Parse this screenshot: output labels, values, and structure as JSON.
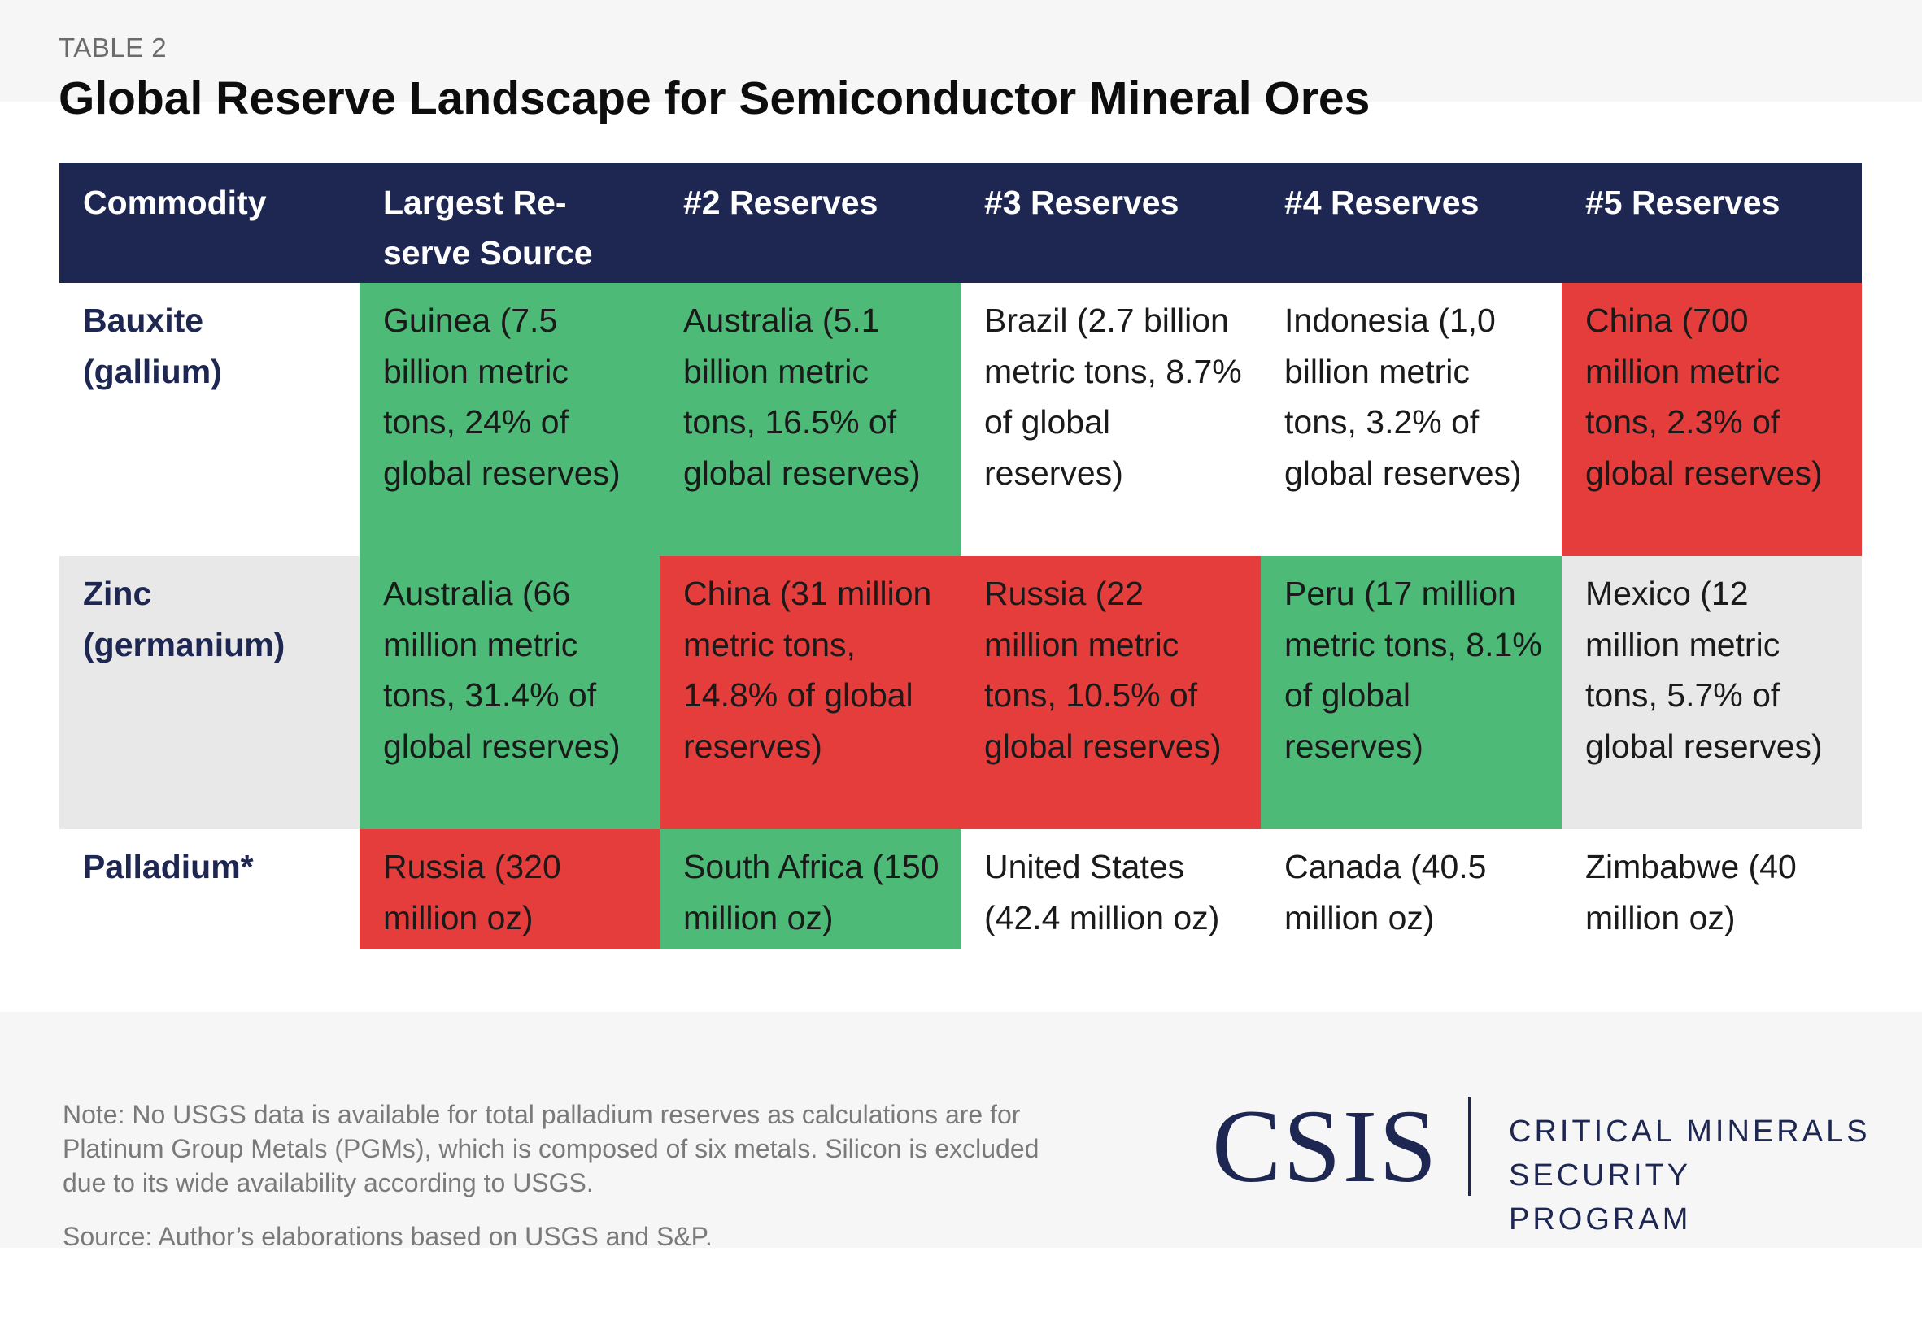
{
  "header": {
    "kicker": "TABLE 2",
    "title": "Global Reserve Landscape for Semiconductor Mineral Ores"
  },
  "table": {
    "columns": [
      "Commodity",
      "Largest Re-serve Source",
      "#2 Reserves",
      "#3 Reserves",
      "#4 Reserves",
      "#5 Reserves"
    ],
    "rows": [
      {
        "commodity": "Bauxite (gallium)",
        "cells": [
          "Guinea (7.5 billion metric tons, 24% of global reserves)",
          "Australia (5.1 billion metric tons, 16.5% of global reserves)",
          "Brazil (2.7 billion metric tons, 8.7% of global reserves)",
          "Indonesia (1,0 billion metric tons, 3.2% of global reserves)",
          "China (700 million metric tons, 2.3% of global reserves)"
        ]
      },
      {
        "commodity": "Zinc (germanium)",
        "cells": [
          "Australia (66 million metric tons, 31.4% of global reserves)",
          "China (31 million metric tons, 14.8% of global reserves)",
          "Russia (22 million metric tons, 10.5% of global reserves)",
          "Peru (17 million metric tons, 8.1% of global reserves)",
          "Mexico (12 million metric tons, 5.7% of global reserves)"
        ]
      },
      {
        "commodity": "Palladium*",
        "cells": [
          "Russia (320 million oz)",
          "South Africa (150 million oz)",
          "United States (42.4 million oz)",
          "Canada (40.5 million oz)",
          "Zimbabwe (40 million oz)"
        ]
      }
    ]
  },
  "colors": {
    "header_bg": "#1e2752",
    "green_highlight": "#4dba78",
    "red_highlight": "#e53d3b",
    "grey_row": "#e8e8e8"
  },
  "footer": {
    "note": "Note: No USGS data is available for total palladium reserves as calculations are for Platinum Group Metals (PGMs), which is composed of six metals. Silicon is excluded due to its wide availability according to USGS.",
    "source": "Source: Author’s elaborations based on USGS and S&P.",
    "logo_word": "CSIS",
    "program_line1": "CRITICAL MINERALS",
    "program_line2": "SECURITY PROGRAM"
  },
  "chart_data": {
    "type": "table",
    "title": "Global Reserve Landscape for Semiconductor Mineral Ores",
    "columns": [
      "Commodity",
      "Largest Re-serve Source",
      "#2 Reserves",
      "#3 Reserves",
      "#4 Reserves",
      "#5 Reserves"
    ],
    "rows": [
      [
        "Bauxite (gallium)",
        "Guinea (7.5 billion metric tons, 24% of global reserves)",
        "Australia (5.1 billion metric tons, 16.5% of global reserves)",
        "Brazil (2.7 billion metric tons, 8.7% of global reserves)",
        "Indonesia (1,0 billion metric tons, 3.2% of global reserves)",
        "China (700 million metric tons, 2.3% of global reserves)"
      ],
      [
        "Zinc (germanium)",
        "Australia (66 million metric tons, 31.4% of global reserves)",
        "China (31 million metric tons, 14.8% of global reserves)",
        "Russia (22 million metric tons, 10.5% of global reserves)",
        "Peru (17 million metric tons, 8.1% of global reserves)",
        "Mexico (12 million metric tons, 5.7% of global reserves)"
      ],
      [
        "Palladium*",
        "Russia (320 million oz)",
        "South Africa (150 million oz)",
        "United States (42.4 million oz)",
        "Canada (40.5 million oz)",
        "Zimbabwe (40 million oz)"
      ]
    ],
    "highlights": [
      [
        "none",
        "green",
        "green",
        "none",
        "none",
        "red"
      ],
      [
        "none",
        "green",
        "red",
        "red",
        "green",
        "none"
      ],
      [
        "none",
        "red",
        "green",
        "none",
        "none",
        "none"
      ]
    ]
  }
}
